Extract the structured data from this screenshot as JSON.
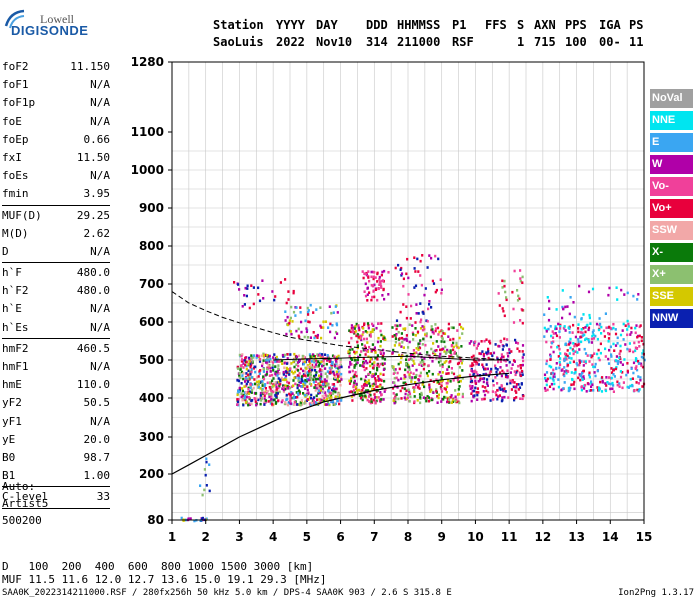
{
  "logo": {
    "line1": "Lowell",
    "line2": "DIGISONDE"
  },
  "header": {
    "labels": [
      "Station",
      "YYYY",
      "DAY",
      "DDD",
      "HHMMSS",
      "P1",
      "FFS",
      "S",
      "AXN",
      "PPS",
      "IGA",
      "PS"
    ],
    "values": [
      "SaoLuis",
      "2022",
      "Nov10",
      "314",
      "211000",
      "RSF",
      "1",
      "715",
      "100",
      "00-",
      "11"
    ]
  },
  "params": [
    {
      "label": "foF2",
      "value": "11.150"
    },
    {
      "label": "foF1",
      "value": "N/A"
    },
    {
      "label": "foF1p",
      "value": "N/A"
    },
    {
      "label": "foE",
      "value": "N/A"
    },
    {
      "label": "foEp",
      "value": "0.66"
    },
    {
      "label": "fxI",
      "value": "11.50"
    },
    {
      "label": "foEs",
      "value": "N/A"
    },
    {
      "label": "fmin",
      "value": "3.95"
    },
    {
      "label": "MUF(D)",
      "value": "29.25"
    },
    {
      "label": "M(D)",
      "value": "2.62"
    },
    {
      "label": "D",
      "value": "N/A"
    },
    {
      "label": "h`F",
      "value": "480.0"
    },
    {
      "label": "h`F2",
      "value": "480.0"
    },
    {
      "label": "h`E",
      "value": "N/A"
    },
    {
      "label": "h`Es",
      "value": "N/A"
    },
    {
      "label": "hmF2",
      "value": "460.5"
    },
    {
      "label": "hmF1",
      "value": "N/A"
    },
    {
      "label": "hmE",
      "value": "110.0"
    },
    {
      "label": "yF2",
      "value": "50.5"
    },
    {
      "label": "yF1",
      "value": "N/A"
    },
    {
      "label": "yE",
      "value": "20.0"
    },
    {
      "label": "B0",
      "value": "98.7"
    },
    {
      "label": "B1",
      "value": "1.00"
    },
    {
      "label": "C-level",
      "value": "33"
    }
  ],
  "auto": {
    "line1": "Auto:",
    "line2": "Artist5",
    "line3": "500200"
  },
  "legend": [
    {
      "label": "NoVal",
      "color": "#a0a0a0"
    },
    {
      "label": "NNE",
      "color": "#00e5f0"
    },
    {
      "label": "E",
      "color": "#3aa6f2"
    },
    {
      "label": "W",
      "color": "#b000a8"
    },
    {
      "label": "Vo-",
      "color": "#f0409a"
    },
    {
      "label": "Vo+",
      "color": "#e8003c"
    },
    {
      "label": "SSW",
      "color": "#f2a8a8"
    },
    {
      "label": "X-",
      "color": "#0a7a0a"
    },
    {
      "label": "X+",
      "color": "#8cc070"
    },
    {
      "label": "SSE",
      "color": "#d4c800"
    },
    {
      "label": "NNW",
      "color": "#0a20b0"
    }
  ],
  "bottom": {
    "d_label": "D",
    "d_values": "100  200  400  600  800 1000 1500 3000 [km]",
    "muf_label": "MUF",
    "muf_values": "11.5 11.6 12.0 12.7 13.6 15.0 19.1 29.3 [MHz]"
  },
  "footer": {
    "left": "SAA0K_2022314211000.RSF / 280fx256h 50 kHz 5.0 km / DPS-4 SAA0K 903 / 2.6 S 315.8 E",
    "right": "Ion2Png 1.3.17"
  },
  "chart_data": {
    "type": "scatter",
    "xlim": [
      1,
      15
    ],
    "x_ticks": [
      1,
      2,
      3,
      4,
      5,
      6,
      7,
      8,
      9,
      10,
      11,
      12,
      13,
      14,
      15
    ],
    "y_ticks": [
      80,
      200,
      300,
      400,
      500,
      600,
      700,
      800,
      900,
      1000,
      1100,
      1280
    ],
    "grid": true,
    "clusters": [
      {
        "x": [
          1.1,
          2.0
        ],
        "y": [
          80,
          90
        ],
        "density": 20,
        "colors": [
          "#0a20b0",
          "#b000a8",
          "#3aa6f2",
          "#d4c800"
        ]
      },
      {
        "x": [
          1.8,
          2.1
        ],
        "y": [
          130,
          300
        ],
        "density": 10,
        "colors": [
          "#3aa6f2",
          "#0a20b0",
          "#8cc070"
        ]
      },
      {
        "x": [
          2.9,
          6.0
        ],
        "y": [
          385,
          520
        ],
        "density": 900,
        "colors": [
          "#b000a8",
          "#f0409a",
          "#0a20b0",
          "#e8003c",
          "#3aa6f2",
          "#d4c800",
          "#f2a8a8",
          "#8cc070",
          "#0a7a0a"
        ]
      },
      {
        "x": [
          6.2,
          7.3
        ],
        "y": [
          390,
          600
        ],
        "density": 300,
        "colors": [
          "#e8003c",
          "#f0409a",
          "#b000a8",
          "#d4c800",
          "#0a7a0a"
        ]
      },
      {
        "x": [
          7.5,
          9.6
        ],
        "y": [
          390,
          600
        ],
        "density": 420,
        "colors": [
          "#f0409a",
          "#e8003c",
          "#b000a8",
          "#0a7a0a",
          "#d4c800",
          "#8cc070"
        ]
      },
      {
        "x": [
          9.8,
          11.4
        ],
        "y": [
          395,
          560
        ],
        "density": 250,
        "colors": [
          "#e8003c",
          "#f0409a",
          "#b000a8",
          "#0a20b0"
        ]
      },
      {
        "x": [
          12.0,
          15.0
        ],
        "y": [
          420,
          600
        ],
        "density": 420,
        "colors": [
          "#00e5f0",
          "#3aa6f2",
          "#b000a8",
          "#f0409a",
          "#e8003c"
        ]
      },
      {
        "x": [
          4.3,
          5.9
        ],
        "y": [
          560,
          650
        ],
        "density": 70,
        "colors": [
          "#d4c800",
          "#3aa6f2",
          "#b000a8",
          "#8cc070",
          "#e8003c"
        ]
      },
      {
        "x": [
          2.8,
          4.8
        ],
        "y": [
          640,
          720
        ],
        "density": 30,
        "colors": [
          "#b000a8",
          "#e8003c",
          "#0a20b0"
        ]
      },
      {
        "x": [
          6.6,
          7.4
        ],
        "y": [
          660,
          740
        ],
        "density": 60,
        "colors": [
          "#b000a8",
          "#f0409a",
          "#e8003c"
        ]
      },
      {
        "x": [
          7.6,
          9.0
        ],
        "y": [
          600,
          780
        ],
        "density": 60,
        "colors": [
          "#b000a8",
          "#f0409a",
          "#e8003c",
          "#0a20b0"
        ]
      },
      {
        "x": [
          10.6,
          11.4
        ],
        "y": [
          600,
          740
        ],
        "density": 30,
        "colors": [
          "#e8003c",
          "#f0409a",
          "#8cc070"
        ]
      },
      {
        "x": [
          12.0,
          14.8
        ],
        "y": [
          580,
          700
        ],
        "density": 50,
        "colors": [
          "#00e5f0",
          "#3aa6f2",
          "#b000a8"
        ]
      }
    ],
    "dashed_curve": {
      "x": [
        1.0,
        1.5,
        2.0,
        2.5,
        3.0,
        3.5,
        4.0,
        4.5,
        5.0,
        5.5,
        6.0,
        7.0,
        8.0,
        9.0,
        10.0,
        11.0
      ],
      "y": [
        680,
        650,
        630,
        612,
        598,
        585,
        572,
        560,
        552,
        545,
        538,
        528,
        518,
        510,
        505,
        500
      ]
    },
    "solid_curve": {
      "x": [
        1.0,
        1.5,
        2.0,
        2.5,
        3.0,
        3.5,
        4.0,
        4.5,
        5.0,
        5.5,
        6.0,
        7.0,
        8.0,
        9.0,
        10.0,
        11.0
      ],
      "y": [
        200,
        225,
        250,
        275,
        300,
        320,
        340,
        360,
        375,
        390,
        400,
        420,
        435,
        448,
        458,
        465
      ]
    },
    "trace": {
      "x": [
        4.0,
        5.0,
        6.0,
        7.0,
        8.0,
        9.0,
        10.0,
        11.0
      ],
      "y": [
        500,
        503,
        505,
        508,
        510,
        505,
        500,
        500
      ]
    }
  }
}
